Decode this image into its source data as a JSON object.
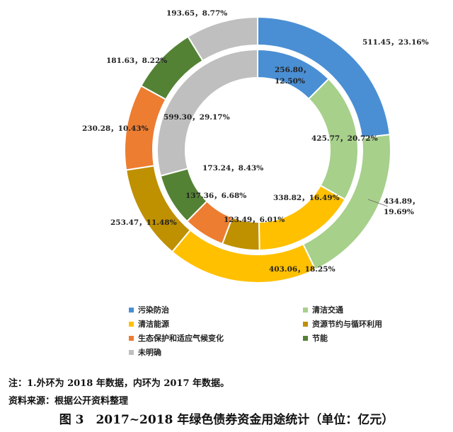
{
  "chart_data": {
    "type": "pie",
    "subtype": "double-donut",
    "categories": [
      "污染防治",
      "清洁交通",
      "清洁能源",
      "资源节约与循环利用",
      "生态保护和适应气候变化",
      "节能",
      "未明确"
    ],
    "colors": [
      "#4a8fd4",
      "#a7d08b",
      "#ffc000",
      "#bf9000",
      "#ed7d31",
      "#548235",
      "#bfbfbf"
    ],
    "series": [
      {
        "ring": "outer",
        "values": [
          511.45,
          434.89,
          403.06,
          253.47,
          230.28,
          181.63,
          193.65
        ],
        "percents": [
          "23.16%",
          "19.69%",
          "18.25%",
          "11.48%",
          "10.43%",
          "8.22%",
          "8.77%"
        ]
      },
      {
        "ring": "inner",
        "values": [
          256.8,
          425.77,
          338.82,
          123.49,
          137.36,
          173.24,
          599.3
        ],
        "percents": [
          "12.50%",
          "20.72%",
          "16.49%",
          "6.01%",
          "6.68%",
          "8.43%",
          "29.17%"
        ]
      }
    ],
    "labels_outer": [
      "511.45，23.16%",
      "434.89，",
      "19.69%",
      "403.06，18.25%",
      "253.47，11.48%",
      "230.28，10.43%",
      "181.63，8.22%",
      "193.65，8.77%"
    ],
    "labels_inner": [
      "256.80，",
      "12.50%",
      "425.77，20.72%",
      "338.82，16.49%",
      "123.49，6.01%",
      "137.36，6.68%",
      "173.24，8.43%",
      "599.30，29.17%"
    ],
    "legend": [
      {
        "label": "污染防治",
        "color": "#4a8fd4"
      },
      {
        "label": "清洁交通",
        "color": "#a7d08b"
      },
      {
        "label": "清洁能源",
        "color": "#ffc000"
      },
      {
        "label": "资源节约与循环利用",
        "color": "#bf9000"
      },
      {
        "label": "生态保护和适应气候变化",
        "color": "#ed7d31"
      },
      {
        "label": "节能",
        "color": "#548235"
      },
      {
        "label": "未明确",
        "color": "#bfbfbf"
      }
    ]
  },
  "note": {
    "lead": "注：",
    "text": "1.外环为 2018 年数据，内环为 2017 年数据。"
  },
  "source": {
    "lead": "资料来源：",
    "text": "根据公开资料整理"
  },
  "caption": "图 3　2017~2018 年绿色债券资金用途统计（单位：亿元）"
}
